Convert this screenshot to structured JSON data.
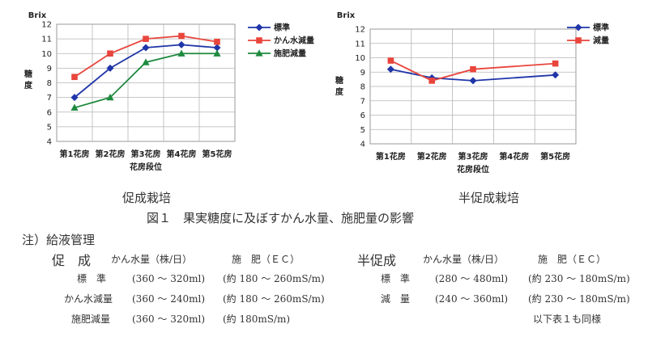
{
  "chart_data": [
    {
      "type": "line",
      "title": "促成栽培",
      "ylabel_top": "Brix",
      "ylabel": "糖度",
      "xlabel": "花房段位",
      "categories": [
        "第1花房",
        "第2花房",
        "第3花房",
        "第4花房",
        "第5花房"
      ],
      "ylim": [
        4,
        12
      ],
      "yticks": [
        "4",
        "5",
        "6",
        "7",
        "8",
        "9",
        "10",
        "11",
        "12"
      ],
      "grid": true,
      "legend": "top-right",
      "series": [
        {
          "name": "標準",
          "values": [
            7.0,
            9.0,
            10.4,
            10.6,
            10.4
          ],
          "color": "#1f35a8",
          "marker": "diamond"
        },
        {
          "name": "かん水減量",
          "values": [
            8.4,
            10.0,
            11.0,
            11.2,
            10.8
          ],
          "color": "#e8453c",
          "marker": "square"
        },
        {
          "name": "施肥減量",
          "values": [
            6.3,
            7.0,
            9.4,
            10.0,
            10.0
          ],
          "color": "#1e8a3e",
          "marker": "triangle"
        }
      ]
    },
    {
      "type": "line",
      "title": "半促成栽培",
      "ylabel_top": "Brix",
      "ylabel": "糖度",
      "xlabel": "花房段位",
      "categories": [
        "第1花房",
        "第2花房",
        "第3花房",
        "第4花房",
        "第5花房"
      ],
      "ylim": [
        4,
        12
      ],
      "yticks": [
        "4",
        "5",
        "6",
        "7",
        "8",
        "9",
        "10",
        "11",
        "12"
      ],
      "grid": true,
      "legend": "top-right",
      "series": [
        {
          "name": "標準",
          "values": [
            9.2,
            8.6,
            8.4,
            null,
            8.8
          ],
          "color": "#1f35a8",
          "marker": "diamond"
        },
        {
          "name": "減量",
          "values": [
            9.8,
            8.4,
            9.2,
            null,
            9.6
          ],
          "color": "#e8453c",
          "marker": "square"
        }
      ]
    }
  ],
  "caption": {
    "left_title": "促成栽培",
    "right_title": "半促成栽培",
    "figure": "図１　果実糖度に及ぼすかん水量、施肥量の影響"
  },
  "note": {
    "heading": "注）給液管理",
    "left": {
      "title": "促　成",
      "col1": "かん水量（株/日）",
      "col2": "施　肥（ＥＣ）",
      "rows": [
        {
          "label": "標　準",
          "water": "(360 ～ 320ml)",
          "fert": "(約 180 ～ 260mS/m)"
        },
        {
          "label": "かん水減量",
          "water": "(360 ～ 240ml)",
          "fert": "(約 180 ～ 260mS/m)"
        },
        {
          "label": "施肥減量",
          "water": "(360 ～ 320ml)",
          "fert": "(約 180mS/m)"
        }
      ]
    },
    "right": {
      "title": "半促成",
      "col1": "かん水量（株/日）",
      "col2": "施　肥（ＥＣ）",
      "rows": [
        {
          "label": "標　準",
          "water": "(280 ～ 480ml)",
          "fert": "(約 230 ～ 180mS/m)"
        },
        {
          "label": "減　量",
          "water": "(240 ～ 360ml)",
          "fert": "(約 230 ～ 180mS/m)"
        }
      ]
    },
    "footer": "以下表１も同様"
  }
}
